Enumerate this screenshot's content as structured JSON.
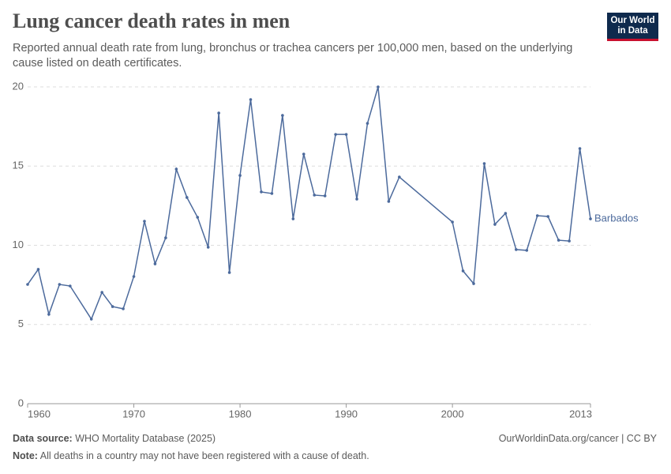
{
  "chart_data": {
    "type": "line",
    "title": "Lung cancer death rates in men",
    "subtitle": "Reported annual death rate from lung, bronchus or trachea cancers per 100,000 men, based on the underlying cause listed on death certificates.",
    "logo": [
      "Our World",
      "in Data"
    ],
    "x": [
      1960,
      1961,
      1962,
      1963,
      1964,
      1966,
      1967,
      1968,
      1969,
      1970,
      1971,
      1972,
      1973,
      1974,
      1975,
      1976,
      1977,
      1978,
      1979,
      1980,
      1981,
      1982,
      1983,
      1984,
      1985,
      1986,
      1987,
      1988,
      1989,
      1990,
      1991,
      1992,
      1993,
      1994,
      1995,
      2000,
      2001,
      2002,
      2003,
      2004,
      2005,
      2006,
      2007,
      2008,
      2009,
      2010,
      2011,
      2012,
      2013
    ],
    "series": [
      {
        "name": "Barbados",
        "color": "#4c6a9c",
        "values": [
          7.53,
          8.48,
          5.64,
          7.53,
          7.43,
          5.34,
          7.03,
          6.13,
          5.99,
          8.03,
          11.52,
          8.83,
          10.47,
          14.81,
          13.02,
          11.77,
          9.88,
          18.35,
          8.28,
          14.41,
          19.2,
          13.37,
          13.27,
          18.2,
          11.67,
          15.76,
          13.17,
          13.12,
          17.0,
          17.0,
          12.92,
          17.7,
          20.0,
          12.77,
          14.31,
          11.47,
          8.38,
          7.58,
          15.16,
          11.32,
          12.02,
          9.73,
          9.68,
          11.87,
          11.82,
          10.32,
          10.27,
          16.11,
          11.67
        ]
      }
    ],
    "xlim": [
      1960,
      2013
    ],
    "xticks": [
      1960,
      1970,
      1980,
      1990,
      2000,
      2013
    ],
    "ylim": [
      0,
      20
    ],
    "yticks": [
      0,
      5,
      10,
      15,
      20
    ],
    "grid": true,
    "source_label": "Data source:",
    "source": "WHO Mortality Database (2025)",
    "credit": "OurWorldinData.org/cancer | CC BY",
    "note_label": "Note:",
    "note": "All deaths in a country may not have been registered with a cause of death."
  }
}
